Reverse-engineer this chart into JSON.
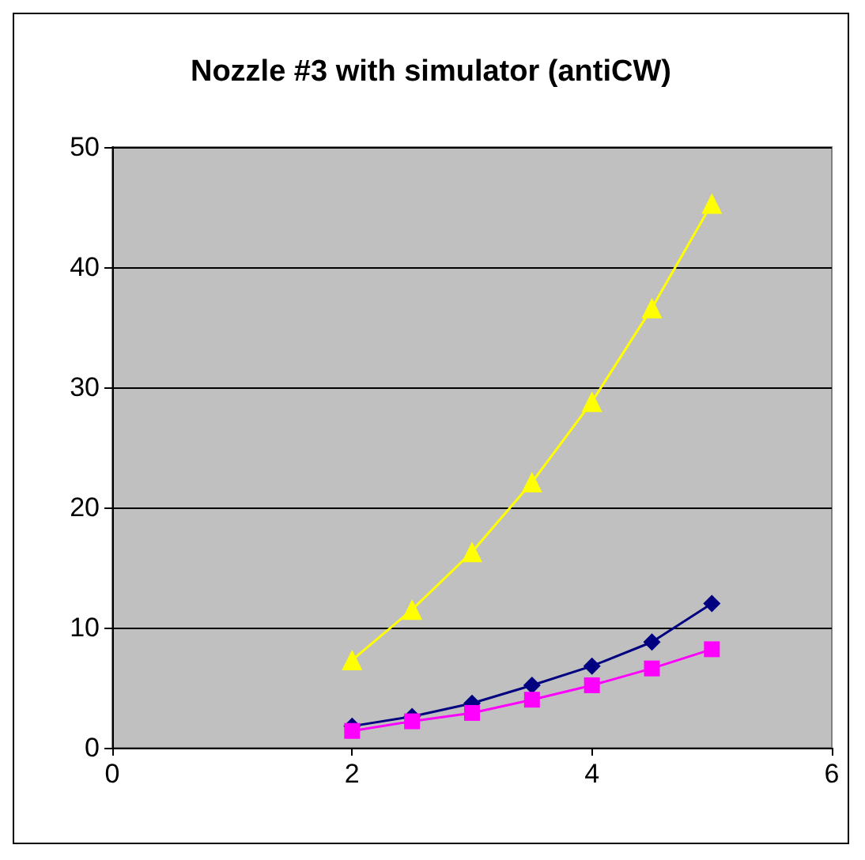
{
  "chart_data": {
    "type": "line",
    "title": "Nozzle #3 with simulator (antiCW)",
    "x": [
      2,
      2.5,
      3,
      3.5,
      4,
      4.5,
      5
    ],
    "series": [
      {
        "color": "#000080",
        "marker": "diamond",
        "values": [
          1.8,
          2.6,
          3.7,
          5.2,
          6.8,
          8.8,
          12.0
        ]
      },
      {
        "color": "#ff00ff",
        "marker": "square",
        "values": [
          1.4,
          2.2,
          2.9,
          4.0,
          5.2,
          6.6,
          8.2
        ]
      },
      {
        "color": "#ffff00",
        "marker": "triangle",
        "values": [
          7.3,
          11.5,
          16.3,
          22.1,
          28.8,
          36.6,
          45.3
        ]
      }
    ],
    "xlim": [
      0,
      6
    ],
    "xticks": [
      0,
      2,
      4,
      6
    ],
    "ylim": [
      0,
      50
    ],
    "yticks": [
      0,
      10,
      20,
      30,
      40,
      50
    ],
    "grid": "y"
  }
}
